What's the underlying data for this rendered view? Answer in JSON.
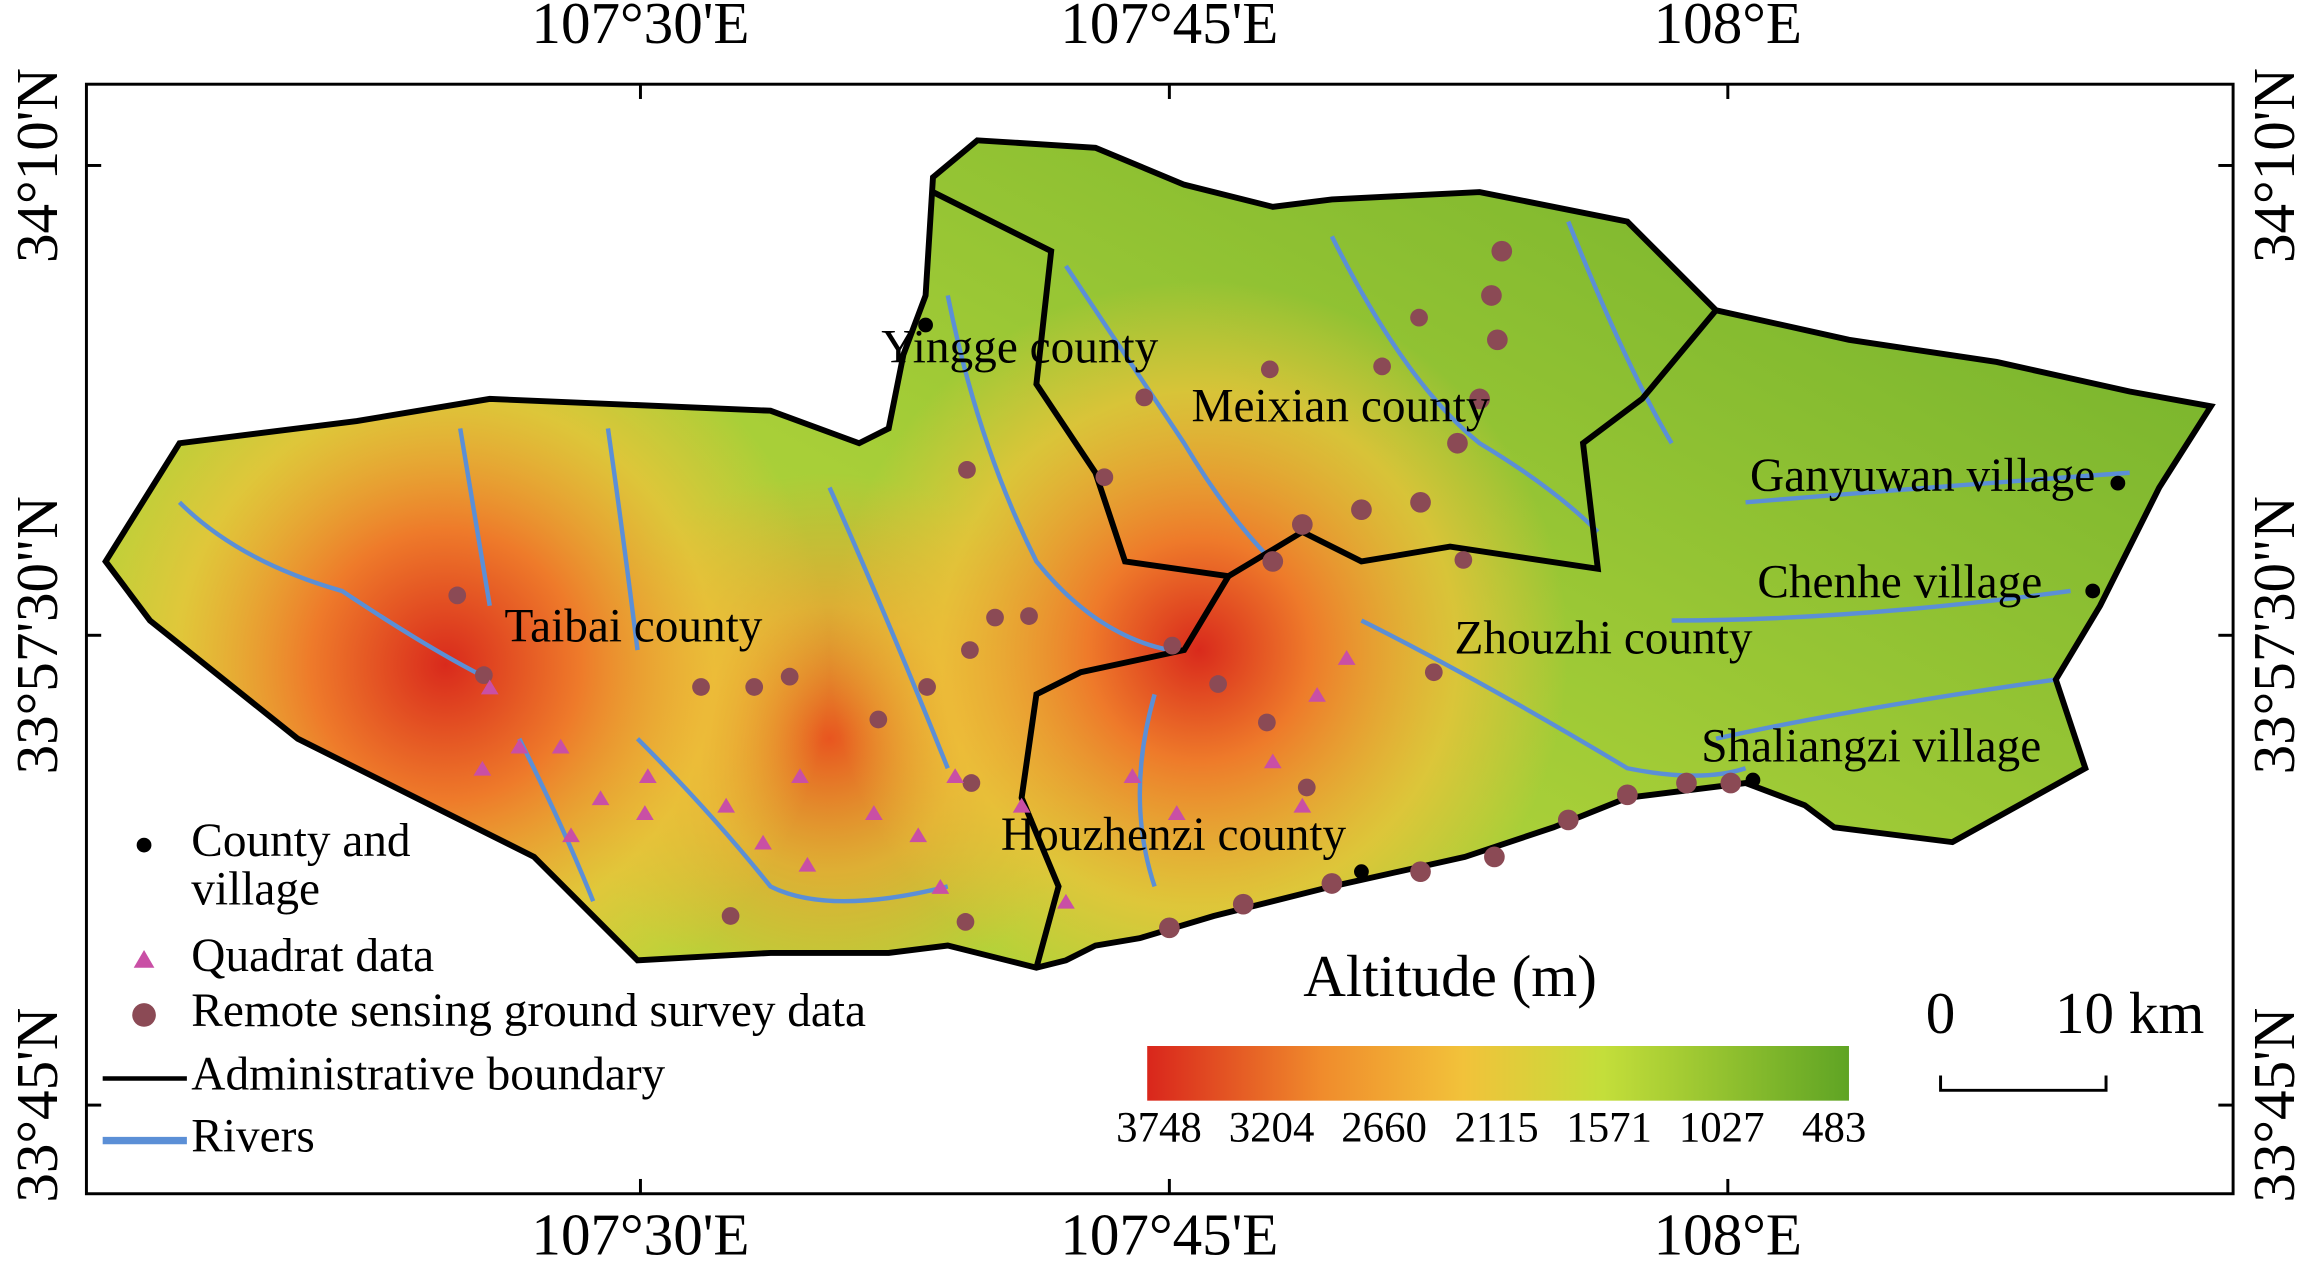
{
  "map": {
    "lon_labels": [
      "107°30'E",
      "107°45'E",
      "108°E"
    ],
    "lat_labels": [
      "34°10'N",
      "33°57'30\"N",
      "33°45'N"
    ],
    "places": [
      "Yingge county",
      "Meixian county",
      "Ganyuwan village",
      "Taibai county",
      "Chenhe village",
      "Zhouzhi county",
      "Shaliangzi village",
      "Houzhenzi county"
    ],
    "legend": [
      {
        "lines": [
          "County and",
          "village"
        ]
      },
      {
        "lines": [
          "Quadrat data"
        ]
      },
      {
        "lines": [
          "Remote sensing ground survey data"
        ]
      },
      {
        "lines": [
          "Administrative boundary"
        ]
      },
      {
        "lines": [
          "Rivers"
        ]
      }
    ],
    "colorbar": {
      "title": "Altitude (m)",
      "ticks": [
        3748,
        3204,
        2660,
        2115,
        1571,
        1027,
        483
      ]
    },
    "scale_bar": {
      "labels": [
        "0",
        "10 km"
      ]
    }
  }
}
